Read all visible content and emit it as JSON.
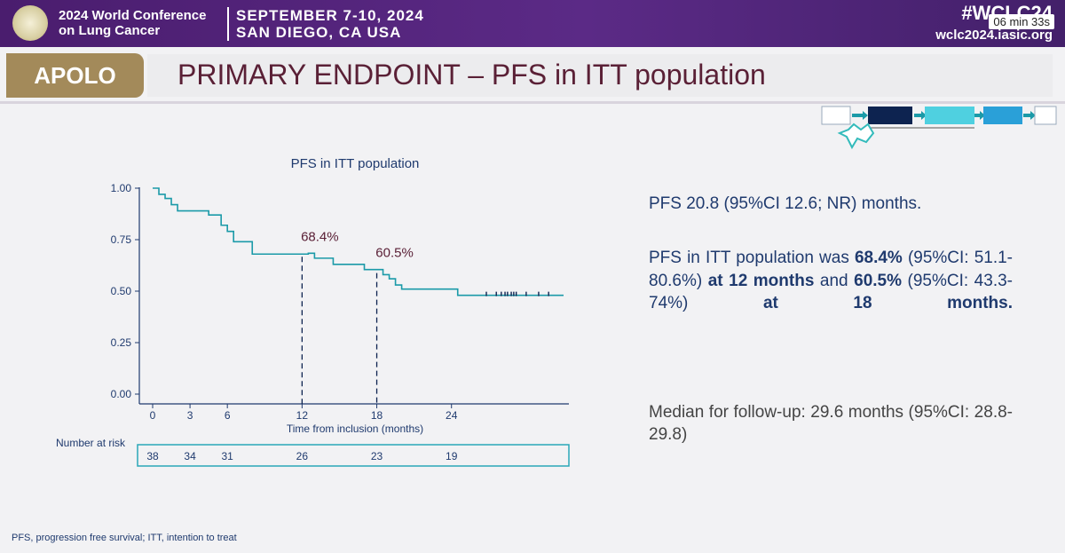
{
  "header": {
    "conference_line1": "2024 World Conference",
    "conference_line2": "on Lung Cancer",
    "dates": "SEPTEMBER 7-10, 2024",
    "location": "SAN DIEGO, CA USA",
    "hashtag": "#WCLC24",
    "timer": "06 min 33s",
    "website": "wclc2024.iasic.org"
  },
  "slide": {
    "tag": "APOLO",
    "title": "PRIMARY ENDPOINT – PFS in ITT population",
    "footnote": "PFS, progression free survival; ITT, intention to treat"
  },
  "right_panel": {
    "pfs_median": "PFS 20.8 (95%CI 12.6; NR) months.",
    "para2": {
      "t1": "PFS in ITT population was ",
      "b1": "68.4%",
      "t2": " (95%CI: 51.1-80.6%) ",
      "b2": "at 12 months",
      "t3": " and ",
      "b3": "60.5%",
      "t4": " (95%CI: 43.3-74%) ",
      "b4": "at 18 months."
    },
    "followup": "Median for follow-up: 29.6 months (95%CI: 28.8-29.8)"
  },
  "chart_data": {
    "type": "line",
    "title": "PFS in ITT population",
    "xlabel": "Time from inclusion (months)",
    "ylabel": "",
    "xlim": [
      0,
      33
    ],
    "ylim": [
      0,
      1
    ],
    "x_ticks": [
      0,
      3,
      6,
      12,
      18,
      24
    ],
    "y_ticks": [
      "0.00",
      "0.25",
      "0.50",
      "0.75",
      "1.00"
    ],
    "series": [
      {
        "x": [
          0,
          0.5,
          1,
          1.5,
          2,
          3,
          4.5,
          5.5,
          6,
          6.5,
          8,
          12.5,
          13,
          14.5,
          17,
          18,
          18.5,
          19,
          19.5,
          20,
          22,
          24.5,
          33
        ],
        "y": [
          1.0,
          0.97,
          0.95,
          0.92,
          0.89,
          0.89,
          0.87,
          0.82,
          0.79,
          0.74,
          0.68,
          0.684,
          0.66,
          0.63,
          0.605,
          0.605,
          0.58,
          0.56,
          0.53,
          0.51,
          0.51,
          0.48,
          0.48
        ]
      }
    ],
    "censor_x": [
      26.8,
      27.6,
      28.0,
      28.3,
      28.5,
      28.8,
      29.0,
      29.2,
      30.0,
      31.0,
      31.8
    ],
    "annotations": [
      {
        "x": 12,
        "y": 0.684,
        "label": "68.4%"
      },
      {
        "x": 18,
        "y": 0.605,
        "label": "60.5%"
      }
    ],
    "risk_table": {
      "label": "Number at risk",
      "times": [
        0,
        3,
        6,
        12,
        18,
        24
      ],
      "values": [
        "38",
        "34",
        "31",
        "26",
        "23",
        "19"
      ]
    }
  },
  "colors": {
    "banner": "#5b2a86",
    "tag": "#a38a5a",
    "title": "#5a2036",
    "text": "#1f3a6e",
    "curve": "#1b9aa8",
    "risk_border": "#2aa8b8"
  }
}
